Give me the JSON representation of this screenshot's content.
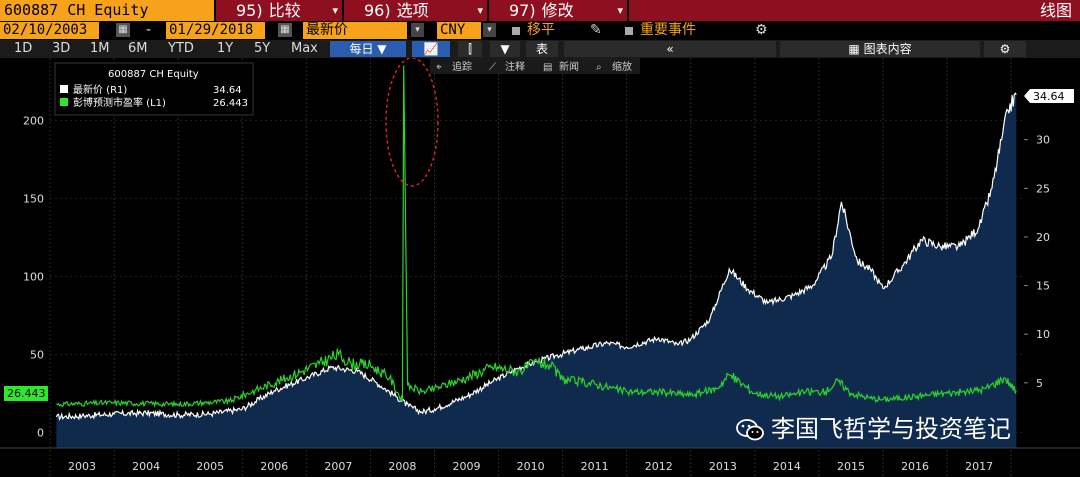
{
  "header": {
    "ticker": "600887 CH Equity",
    "compare_num": "95)",
    "compare_label": "比较",
    "options_num": "96)",
    "options_label": "选项",
    "edit_num": "97)",
    "edit_label": "修改",
    "view_label": "线图"
  },
  "controls": {
    "start_date": "02/10/2003",
    "end_date": "01/29/2018",
    "date_sep": "-",
    "field_value": "最新价",
    "currency": "CNY",
    "shift_label": "移平",
    "events_label": "重要事件",
    "periods": [
      "1D",
      "3D",
      "1M",
      "6M",
      "YTD",
      "1Y",
      "5Y",
      "Max"
    ],
    "frequency": "每日",
    "table_label": "表",
    "chart_content_label": "图表内容"
  },
  "toolbar": {
    "track_label": "追踪",
    "annotate_label": "注释",
    "news_label": "新闻",
    "zoom_label": "缩放"
  },
  "legend": {
    "title": "600887 CH Equity",
    "price_label": "最新价 (R1)",
    "price_value": "34.64",
    "pe_label": "彭博预测市盈率 (L1)",
    "pe_value": "26.443"
  },
  "watermark": "李国飞哲学与投资笔记",
  "colors": {
    "orange": "#f7a21b",
    "red_button": "#8e1020",
    "price_line": "#ffffff",
    "price_fill": "#0f2a4d",
    "pe_line": "#2bd42b",
    "pe_box": "#2ee82e",
    "ellipse": "#e0202a"
  },
  "chart_data": {
    "type": "line",
    "x_label_years": [
      "2003",
      "2004",
      "2005",
      "2006",
      "2007",
      "2008",
      "2009",
      "2010",
      "2011",
      "2012",
      "2013",
      "2014",
      "2015",
      "2016",
      "2017"
    ],
    "left_axis": {
      "ticks": [
        0,
        50,
        100,
        150,
        200
      ],
      "min": -10,
      "max": 240
    },
    "right_axis": {
      "ticks": [
        5,
        10,
        15,
        20,
        25,
        30
      ],
      "min": -1.7,
      "max": 38.4
    },
    "series": [
      {
        "name": "最新价 (R1)",
        "axis": "right",
        "points": [
          [
            2003.1,
            1.5
          ],
          [
            2003.5,
            1.6
          ],
          [
            2004.0,
            1.8
          ],
          [
            2004.5,
            1.9
          ],
          [
            2005.0,
            1.7
          ],
          [
            2005.5,
            1.8
          ],
          [
            2006.0,
            2.3
          ],
          [
            2006.5,
            4.2
          ],
          [
            2007.0,
            5.5
          ],
          [
            2007.4,
            6.6
          ],
          [
            2007.8,
            6.2
          ],
          [
            2008.1,
            5.0
          ],
          [
            2008.4,
            3.6
          ],
          [
            2008.6,
            2.6
          ],
          [
            2008.8,
            2.0
          ],
          [
            2009.0,
            2.3
          ],
          [
            2009.5,
            3.6
          ],
          [
            2009.9,
            5.1
          ],
          [
            2010.3,
            6.5
          ],
          [
            2010.6,
            7.2
          ],
          [
            2010.9,
            7.8
          ],
          [
            2011.3,
            8.5
          ],
          [
            2011.7,
            9.1
          ],
          [
            2012.0,
            8.7
          ],
          [
            2012.5,
            9.6
          ],
          [
            2012.8,
            8.9
          ],
          [
            2013.0,
            9.5
          ],
          [
            2013.3,
            11.6
          ],
          [
            2013.6,
            16.7
          ],
          [
            2013.9,
            14.6
          ],
          [
            2014.2,
            13.2
          ],
          [
            2014.6,
            14.0
          ],
          [
            2014.9,
            15.0
          ],
          [
            2015.2,
            18.0
          ],
          [
            2015.35,
            23.6
          ],
          [
            2015.6,
            17.5
          ],
          [
            2015.8,
            16.7
          ],
          [
            2016.0,
            14.7
          ],
          [
            2016.3,
            17.0
          ],
          [
            2016.6,
            19.7
          ],
          [
            2016.9,
            19.0
          ],
          [
            2017.2,
            19.0
          ],
          [
            2017.5,
            21.0
          ],
          [
            2017.7,
            25.0
          ],
          [
            2017.85,
            30.0
          ],
          [
            2017.95,
            33.0
          ],
          [
            2018.08,
            34.64
          ]
        ]
      },
      {
        "name": "彭博预测市盈率 (L1)",
        "axis": "left",
        "points": [
          [
            2003.1,
            18
          ],
          [
            2004.0,
            19
          ],
          [
            2005.0,
            18
          ],
          [
            2005.8,
            20
          ],
          [
            2006.2,
            27
          ],
          [
            2006.7,
            35
          ],
          [
            2007.2,
            44
          ],
          [
            2007.5,
            50
          ],
          [
            2007.7,
            44
          ],
          [
            2008.0,
            43
          ],
          [
            2008.3,
            35
          ],
          [
            2008.5,
            20
          ],
          [
            2008.52,
            235
          ],
          [
            2008.58,
            30
          ],
          [
            2008.8,
            26
          ],
          [
            2009.0,
            28
          ],
          [
            2009.5,
            35
          ],
          [
            2009.9,
            42
          ],
          [
            2010.3,
            39
          ],
          [
            2010.6,
            45
          ],
          [
            2010.8,
            43
          ],
          [
            2011.0,
            34
          ],
          [
            2011.5,
            31
          ],
          [
            2012.0,
            26
          ],
          [
            2012.5,
            26
          ],
          [
            2013.0,
            24
          ],
          [
            2013.4,
            28
          ],
          [
            2013.6,
            37
          ],
          [
            2014.0,
            25
          ],
          [
            2014.4,
            23
          ],
          [
            2014.8,
            26
          ],
          [
            2015.1,
            26
          ],
          [
            2015.3,
            33
          ],
          [
            2015.5,
            25
          ],
          [
            2015.8,
            22
          ],
          [
            2016.0,
            21
          ],
          [
            2016.5,
            23
          ],
          [
            2016.9,
            25
          ],
          [
            2017.3,
            26
          ],
          [
            2017.6,
            28
          ],
          [
            2017.9,
            35
          ],
          [
            2018.08,
            26.443
          ]
        ]
      }
    ]
  }
}
